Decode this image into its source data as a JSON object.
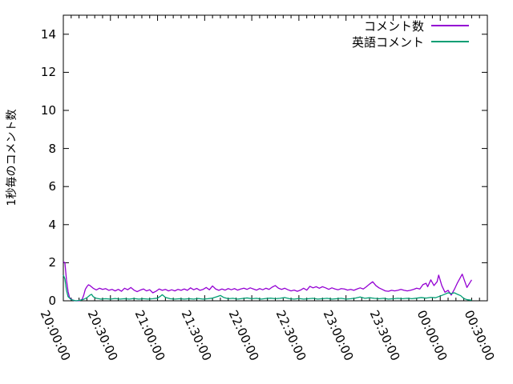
{
  "chart_data": {
    "type": "line",
    "title": "",
    "xlabel": "",
    "ylabel": "1秒毎のコメント数",
    "x_unit": "minutes after 20:00:00",
    "x_range": [
      0,
      270
    ],
    "y_range": [
      0,
      15
    ],
    "x_major_tick_minutes": 30,
    "x_minor_tick_minutes": 5,
    "y_major_tick": 2,
    "x_tick_labels": [
      "20:00:00",
      "20:30:00",
      "21:00:00",
      "21:30:00",
      "22:00:00",
      "22:30:00",
      "23:00:00",
      "23:30:00",
      "00:00:00",
      "00:30:00"
    ],
    "y_tick_labels": [
      "0",
      "2",
      "4",
      "6",
      "8",
      "10",
      "12",
      "14"
    ],
    "grid": false,
    "legend_position": "top-right-inside",
    "axis_color": "#000000",
    "series": [
      {
        "name": "コメント数",
        "color": "#9400d3",
        "points": [
          [
            0,
            2.05
          ],
          [
            1,
            2.0
          ],
          [
            2,
            1.1
          ],
          [
            3,
            0.5
          ],
          [
            4,
            0.15
          ],
          [
            6,
            0.03
          ],
          [
            8,
            0
          ],
          [
            10,
            0
          ],
          [
            12,
            0.08
          ],
          [
            13,
            0.3
          ],
          [
            14,
            0.6
          ],
          [
            15,
            0.74
          ],
          [
            16,
            0.84
          ],
          [
            17,
            0.8
          ],
          [
            19,
            0.66
          ],
          [
            21,
            0.57
          ],
          [
            23,
            0.66
          ],
          [
            25,
            0.6
          ],
          [
            27,
            0.64
          ],
          [
            29,
            0.55
          ],
          [
            31,
            0.6
          ],
          [
            33,
            0.52
          ],
          [
            35,
            0.6
          ],
          [
            37,
            0.5
          ],
          [
            39,
            0.66
          ],
          [
            41,
            0.58
          ],
          [
            43,
            0.7
          ],
          [
            45,
            0.56
          ],
          [
            47,
            0.48
          ],
          [
            49,
            0.56
          ],
          [
            51,
            0.62
          ],
          [
            53,
            0.52
          ],
          [
            55,
            0.58
          ],
          [
            57,
            0.42
          ],
          [
            59,
            0.5
          ],
          [
            61,
            0.62
          ],
          [
            63,
            0.55
          ],
          [
            65,
            0.6
          ],
          [
            67,
            0.52
          ],
          [
            69,
            0.58
          ],
          [
            71,
            0.52
          ],
          [
            73,
            0.6
          ],
          [
            75,
            0.55
          ],
          [
            77,
            0.62
          ],
          [
            79,
            0.55
          ],
          [
            81,
            0.68
          ],
          [
            83,
            0.58
          ],
          [
            85,
            0.65
          ],
          [
            87,
            0.55
          ],
          [
            89,
            0.6
          ],
          [
            91,
            0.7
          ],
          [
            93,
            0.58
          ],
          [
            95,
            0.78
          ],
          [
            97,
            0.62
          ],
          [
            99,
            0.55
          ],
          [
            101,
            0.62
          ],
          [
            103,
            0.56
          ],
          [
            105,
            0.64
          ],
          [
            107,
            0.58
          ],
          [
            109,
            0.64
          ],
          [
            111,
            0.56
          ],
          [
            113,
            0.62
          ],
          [
            115,
            0.66
          ],
          [
            117,
            0.6
          ],
          [
            119,
            0.68
          ],
          [
            121,
            0.62
          ],
          [
            123,
            0.56
          ],
          [
            125,
            0.64
          ],
          [
            127,
            0.58
          ],
          [
            129,
            0.66
          ],
          [
            131,
            0.6
          ],
          [
            133,
            0.72
          ],
          [
            135,
            0.8
          ],
          [
            137,
            0.66
          ],
          [
            139,
            0.6
          ],
          [
            141,
            0.66
          ],
          [
            143,
            0.58
          ],
          [
            145,
            0.52
          ],
          [
            147,
            0.56
          ],
          [
            149,
            0.5
          ],
          [
            151,
            0.56
          ],
          [
            153,
            0.66
          ],
          [
            155,
            0.56
          ],
          [
            157,
            0.76
          ],
          [
            159,
            0.68
          ],
          [
            161,
            0.74
          ],
          [
            163,
            0.66
          ],
          [
            165,
            0.74
          ],
          [
            167,
            0.68
          ],
          [
            169,
            0.6
          ],
          [
            171,
            0.68
          ],
          [
            173,
            0.62
          ],
          [
            175,
            0.58
          ],
          [
            177,
            0.64
          ],
          [
            179,
            0.62
          ],
          [
            181,
            0.56
          ],
          [
            183,
            0.6
          ],
          [
            185,
            0.55
          ],
          [
            187,
            0.62
          ],
          [
            189,
            0.68
          ],
          [
            191,
            0.62
          ],
          [
            193,
            0.74
          ],
          [
            195,
            0.88
          ],
          [
            197,
            1.0
          ],
          [
            199,
            0.8
          ],
          [
            201,
            0.68
          ],
          [
            203,
            0.6
          ],
          [
            205,
            0.52
          ],
          [
            207,
            0.5
          ],
          [
            209,
            0.55
          ],
          [
            211,
            0.52
          ],
          [
            213,
            0.55
          ],
          [
            215,
            0.6
          ],
          [
            217,
            0.55
          ],
          [
            219,
            0.52
          ],
          [
            221,
            0.55
          ],
          [
            223,
            0.6
          ],
          [
            225,
            0.66
          ],
          [
            227,
            0.62
          ],
          [
            229,
            0.85
          ],
          [
            231,
            0.92
          ],
          [
            232,
            0.74
          ],
          [
            234,
            1.1
          ],
          [
            236,
            0.8
          ],
          [
            238,
            1.0
          ],
          [
            239,
            1.35
          ],
          [
            241,
            0.8
          ],
          [
            243,
            0.45
          ],
          [
            245,
            0.55
          ],
          [
            247,
            0.3
          ],
          [
            249,
            0.6
          ],
          [
            251,
            0.95
          ],
          [
            254,
            1.4
          ],
          [
            257,
            0.7
          ],
          [
            260,
            1.1
          ]
        ]
      },
      {
        "name": "英語コメント",
        "color": "#009e73",
        "points": [
          [
            0,
            1.35
          ],
          [
            1,
            1.15
          ],
          [
            2,
            0.55
          ],
          [
            3,
            0.22
          ],
          [
            5,
            0.06
          ],
          [
            8,
            0
          ],
          [
            11,
            0.03
          ],
          [
            13,
            0.08
          ],
          [
            15,
            0.16
          ],
          [
            17,
            0.3
          ],
          [
            18,
            0.34
          ],
          [
            19,
            0.22
          ],
          [
            21,
            0.13
          ],
          [
            24,
            0.09
          ],
          [
            27,
            0.11
          ],
          [
            30,
            0.09
          ],
          [
            33,
            0.12
          ],
          [
            36,
            0.09
          ],
          [
            39,
            0.11
          ],
          [
            42,
            0.09
          ],
          [
            45,
            0.12
          ],
          [
            48,
            0.09
          ],
          [
            51,
            0.11
          ],
          [
            54,
            0.09
          ],
          [
            57,
            0.11
          ],
          [
            60,
            0.14
          ],
          [
            62,
            0.25
          ],
          [
            63,
            0.32
          ],
          [
            65,
            0.18
          ],
          [
            68,
            0.11
          ],
          [
            71,
            0.09
          ],
          [
            74,
            0.11
          ],
          [
            77,
            0.09
          ],
          [
            80,
            0.11
          ],
          [
            83,
            0.09
          ],
          [
            86,
            0.12
          ],
          [
            89,
            0.09
          ],
          [
            92,
            0.11
          ],
          [
            95,
            0.14
          ],
          [
            98,
            0.22
          ],
          [
            100,
            0.28
          ],
          [
            102,
            0.18
          ],
          [
            105,
            0.11
          ],
          [
            108,
            0.13
          ],
          [
            111,
            0.09
          ],
          [
            114,
            0.12
          ],
          [
            117,
            0.15
          ],
          [
            120,
            0.11
          ],
          [
            123,
            0.13
          ],
          [
            126,
            0.09
          ],
          [
            129,
            0.12
          ],
          [
            132,
            0.14
          ],
          [
            135,
            0.11
          ],
          [
            138,
            0.13
          ],
          [
            141,
            0.17
          ],
          [
            144,
            0.11
          ],
          [
            147,
            0.09
          ],
          [
            150,
            0.12
          ],
          [
            153,
            0.09
          ],
          [
            156,
            0.11
          ],
          [
            159,
            0.13
          ],
          [
            162,
            0.09
          ],
          [
            165,
            0.11
          ],
          [
            168,
            0.13
          ],
          [
            171,
            0.09
          ],
          [
            174,
            0.11
          ],
          [
            177,
            0.13
          ],
          [
            180,
            0.09
          ],
          [
            183,
            0.11
          ],
          [
            186,
            0.14
          ],
          [
            189,
            0.2
          ],
          [
            192,
            0.13
          ],
          [
            195,
            0.16
          ],
          [
            198,
            0.13
          ],
          [
            201,
            0.11
          ],
          [
            204,
            0.13
          ],
          [
            207,
            0.09
          ],
          [
            210,
            0.11
          ],
          [
            213,
            0.13
          ],
          [
            216,
            0.11
          ],
          [
            219,
            0.13
          ],
          [
            222,
            0.11
          ],
          [
            225,
            0.14
          ],
          [
            228,
            0.17
          ],
          [
            231,
            0.14
          ],
          [
            234,
            0.18
          ],
          [
            237,
            0.16
          ],
          [
            240,
            0.25
          ],
          [
            243,
            0.35
          ],
          [
            245,
            0.42
          ],
          [
            247,
            0.38
          ],
          [
            249,
            0.42
          ],
          [
            251,
            0.34
          ],
          [
            253,
            0.27
          ],
          [
            255,
            0.12
          ],
          [
            257,
            0.06
          ],
          [
            259,
            0.04
          ],
          [
            260,
            0.03
          ]
        ]
      }
    ]
  },
  "legend": {
    "entries": [
      {
        "label": "コメント数",
        "color": "#9400d3"
      },
      {
        "label": "英語コメント",
        "color": "#009e73"
      }
    ]
  },
  "y_axis": {
    "title": "1秒毎のコメント数"
  },
  "layout_colors": {
    "background": "#ffffff",
    "border": "#000000",
    "text": "#000000"
  }
}
